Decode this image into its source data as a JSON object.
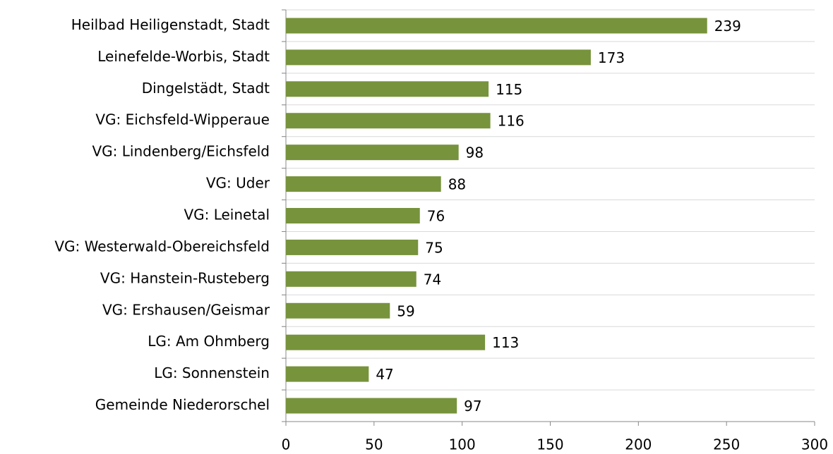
{
  "chart_data": {
    "type": "bar",
    "orientation": "horizontal",
    "categories": [
      "Heilbad Heiligenstadt, Stadt",
      "Leinefelde-Worbis, Stadt",
      "Dingelstädt, Stadt",
      "VG: Eichsfeld-Wipperaue",
      "VG: Lindenberg/Eichsfeld",
      "VG: Uder",
      "VG: Leinetal",
      "VG: Westerwald-Obereichsfeld",
      "VG: Hanstein-Rusteberg",
      "VG: Ershausen/Geismar",
      "LG: Am Ohmberg",
      "LG: Sonnenstein",
      "Gemeinde Niederorschel"
    ],
    "values": [
      239,
      173,
      115,
      116,
      98,
      88,
      76,
      75,
      74,
      59,
      113,
      47,
      97
    ],
    "color": "#77933c",
    "xlim": [
      0,
      300
    ],
    "xticks": [
      0,
      50,
      100,
      150,
      200,
      250,
      300
    ]
  }
}
